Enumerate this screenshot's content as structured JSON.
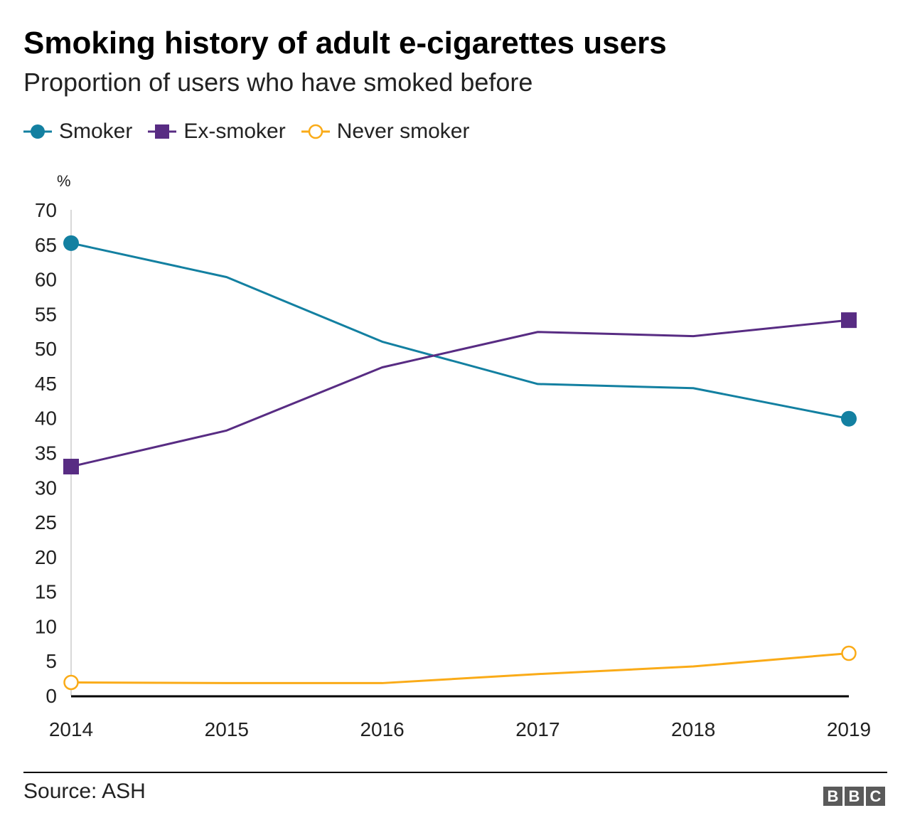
{
  "chart_data": {
    "type": "line",
    "title": "Smoking history of adult e-cigarettes users",
    "subtitle": "Proportion of users who have smoked before",
    "ylabel": "%",
    "xlabel": "",
    "x": [
      "2014",
      "2015",
      "2016",
      "2017",
      "2018",
      "2019"
    ],
    "ylim": [
      0,
      70
    ],
    "yticks": [
      0,
      5,
      10,
      15,
      20,
      25,
      30,
      35,
      40,
      45,
      50,
      55,
      60,
      65,
      70
    ],
    "grid": false,
    "legend_position": "top-left",
    "series": [
      {
        "name": "Smoker",
        "color": "#1380a1",
        "marker": "filled-circle",
        "values": [
          65.2,
          60.3,
          51.0,
          44.9,
          44.3,
          39.9
        ]
      },
      {
        "name": "Ex-smoker",
        "color": "#582c83",
        "marker": "filled-square",
        "values": [
          33.0,
          38.2,
          47.3,
          52.4,
          51.8,
          54.1
        ]
      },
      {
        "name": "Never smoker",
        "color": "#faab18",
        "marker": "hollow-circle",
        "values": [
          1.9,
          1.8,
          1.8,
          3.1,
          4.2,
          6.1
        ]
      }
    ],
    "source": "Source: ASH"
  },
  "logo": "BBC"
}
